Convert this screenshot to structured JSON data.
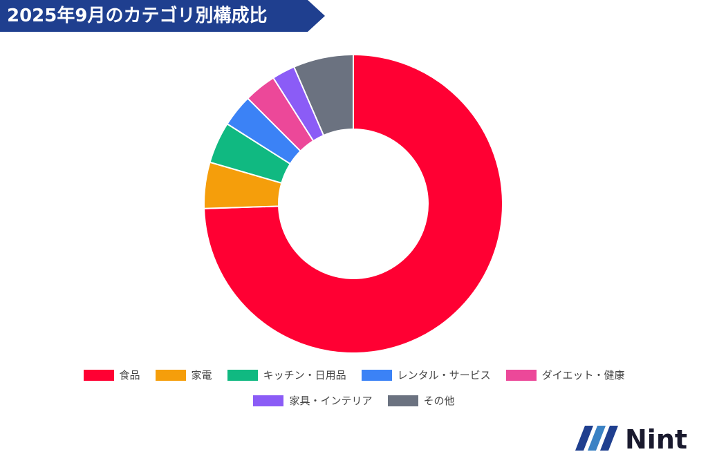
{
  "header": {
    "title": "2025年9月のカテゴリ別構成比"
  },
  "logo": {
    "text": "Nint"
  },
  "chart_data": {
    "type": "pie",
    "variant": "donut",
    "title": "2025年9月のカテゴリ別構成比",
    "legend_position": "bottom",
    "categories": [
      "食品",
      "家電",
      "キッチン・日用品",
      "レンタル・サービス",
      "ダイエット・健康",
      "家具・インテリア",
      "その他"
    ],
    "values": [
      74.5,
      5.0,
      4.5,
      3.5,
      3.5,
      2.5,
      6.5
    ],
    "unit": "%",
    "colors": [
      "#ff0033",
      "#f59e0b",
      "#10b981",
      "#3b82f6",
      "#ec4899",
      "#8b5cf6",
      "#6b7280"
    ]
  }
}
